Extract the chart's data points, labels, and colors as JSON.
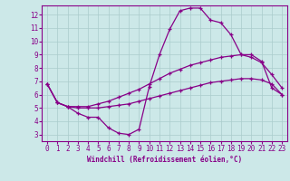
{
  "xlabel": "Windchill (Refroidissement éolien,°C)",
  "background_color": "#cce8e8",
  "grid_color": "#aacccc",
  "line_color": "#880088",
  "xlim": [
    -0.5,
    23.5
  ],
  "ylim": [
    2.5,
    12.7
  ],
  "xticks": [
    0,
    1,
    2,
    3,
    4,
    5,
    6,
    7,
    8,
    9,
    10,
    11,
    12,
    13,
    14,
    15,
    16,
    17,
    18,
    19,
    20,
    21,
    22,
    23
  ],
  "yticks": [
    3,
    4,
    5,
    6,
    7,
    8,
    9,
    10,
    11,
    12
  ],
  "line1_x": [
    0,
    1,
    2,
    3,
    4,
    5,
    6,
    7,
    8,
    9,
    10,
    11,
    12,
    13,
    14,
    15,
    16,
    17,
    18,
    19,
    20,
    21,
    22,
    23
  ],
  "line1_y": [
    6.8,
    5.4,
    5.1,
    4.6,
    4.3,
    4.3,
    3.5,
    3.1,
    3.0,
    3.4,
    6.6,
    9.0,
    10.9,
    12.3,
    12.5,
    12.5,
    11.6,
    11.4,
    10.5,
    9.0,
    9.0,
    8.5,
    6.5,
    6.0
  ],
  "line2_x": [
    0,
    1,
    2,
    3,
    4,
    5,
    6,
    7,
    8,
    9,
    10,
    11,
    12,
    13,
    14,
    15,
    16,
    17,
    18,
    19,
    20,
    21,
    22,
    23
  ],
  "line2_y": [
    6.8,
    5.4,
    5.1,
    5.1,
    5.1,
    5.3,
    5.5,
    5.8,
    6.1,
    6.4,
    6.8,
    7.2,
    7.6,
    7.9,
    8.2,
    8.4,
    8.6,
    8.8,
    8.9,
    9.0,
    8.8,
    8.4,
    7.5,
    6.5
  ],
  "line3_x": [
    0,
    1,
    2,
    3,
    4,
    5,
    6,
    7,
    8,
    9,
    10,
    11,
    12,
    13,
    14,
    15,
    16,
    17,
    18,
    19,
    20,
    21,
    22,
    23
  ],
  "line3_y": [
    6.8,
    5.4,
    5.1,
    5.0,
    5.0,
    5.0,
    5.1,
    5.2,
    5.3,
    5.5,
    5.7,
    5.9,
    6.1,
    6.3,
    6.5,
    6.7,
    6.9,
    7.0,
    7.1,
    7.2,
    7.2,
    7.1,
    6.8,
    6.0
  ]
}
